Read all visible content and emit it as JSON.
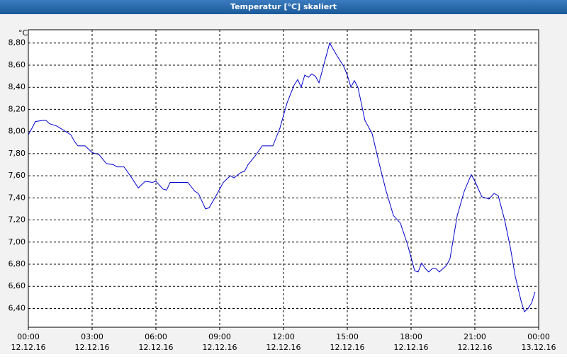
{
  "chart_data": {
    "type": "line",
    "title": "Temperatur [°C] skaliert",
    "y_unit": "°C",
    "x": [
      0,
      0.17,
      0.33,
      0.67,
      0.83,
      1.0,
      1.33,
      1.67,
      2.0,
      2.17,
      2.33,
      2.67,
      3.0,
      3.33,
      3.67,
      4.0,
      4.17,
      4.5,
      4.83,
      5.17,
      5.5,
      5.83,
      6.0,
      6.33,
      6.5,
      6.67,
      7.33,
      7.5,
      7.83,
      8.0,
      8.33,
      8.5,
      8.83,
      9.17,
      9.5,
      9.67,
      10.0,
      10.17,
      10.33,
      10.67,
      11.0,
      11.5,
      11.83,
      12.17,
      12.5,
      12.67,
      12.83,
      13.0,
      13.17,
      13.33,
      13.5,
      13.67,
      14.17,
      14.5,
      14.83,
      15.0,
      15.17,
      15.33,
      15.5,
      15.83,
      16.17,
      16.5,
      16.83,
      17.17,
      17.5,
      17.83,
      18.17,
      18.33,
      18.5,
      18.67,
      18.83,
      19.0,
      19.17,
      19.33,
      19.67,
      19.83,
      20.17,
      20.5,
      20.83,
      21.0,
      21.33,
      21.67,
      21.9,
      22.1,
      22.4,
      22.67,
      22.9,
      23.17,
      23.33,
      23.5,
      23.67,
      23.83
    ],
    "series": [
      {
        "color": "#0000cc",
        "values": [
          7.97,
          8.03,
          8.09,
          8.1,
          8.1,
          8.07,
          8.05,
          8.01,
          7.97,
          7.91,
          7.87,
          7.87,
          7.81,
          7.79,
          7.71,
          7.7,
          7.68,
          7.68,
          7.59,
          7.49,
          7.55,
          7.54,
          7.55,
          7.48,
          7.47,
          7.54,
          7.54,
          7.54,
          7.46,
          7.44,
          7.3,
          7.31,
          7.42,
          7.54,
          7.6,
          7.58,
          7.63,
          7.64,
          7.7,
          7.78,
          7.87,
          7.87,
          8.03,
          8.26,
          8.42,
          8.47,
          8.4,
          8.51,
          8.49,
          8.52,
          8.5,
          8.44,
          8.8,
          8.69,
          8.59,
          8.51,
          8.4,
          8.46,
          8.4,
          8.1,
          7.98,
          7.71,
          7.46,
          7.24,
          7.17,
          6.98,
          6.74,
          6.73,
          6.81,
          6.76,
          6.73,
          6.76,
          6.76,
          6.73,
          6.79,
          6.85,
          7.24,
          7.46,
          7.61,
          7.55,
          7.41,
          7.39,
          7.44,
          7.42,
          7.2,
          6.95,
          6.69,
          6.47,
          6.37,
          6.4,
          6.45,
          6.55
        ]
      }
    ],
    "xlim": [
      0,
      24
    ],
    "xticks": [
      {
        "value": 0,
        "label": "00:00"
      },
      {
        "value": 3,
        "label": "03:00"
      },
      {
        "value": 6,
        "label": "06:00"
      },
      {
        "value": 9,
        "label": "09:00"
      },
      {
        "value": 12,
        "label": "12:00"
      },
      {
        "value": 15,
        "label": "15:00"
      },
      {
        "value": 18,
        "label": "18:00"
      },
      {
        "value": 21,
        "label": "21:00"
      },
      {
        "value": 24,
        "label": "00:00"
      }
    ],
    "xtick_dates": [
      "12.12.16",
      "12.12.16",
      "12.12.16",
      "12.12.16",
      "12.12.16",
      "12.12.16",
      "12.12.16",
      "12.12.16",
      "13.12.16"
    ],
    "ylim": [
      6.23,
      8.92
    ],
    "yticks": [
      {
        "value": 6.4,
        "label": "6,40"
      },
      {
        "value": 6.6,
        "label": "6,60"
      },
      {
        "value": 6.8,
        "label": "6,80"
      },
      {
        "value": 7.0,
        "label": "7,00"
      },
      {
        "value": 7.2,
        "label": "7,20"
      },
      {
        "value": 7.4,
        "label": "7,40"
      },
      {
        "value": 7.6,
        "label": "7,60"
      },
      {
        "value": 7.8,
        "label": "7,80"
      },
      {
        "value": 8.0,
        "label": "8,00"
      },
      {
        "value": 8.2,
        "label": "8,20"
      },
      {
        "value": 8.4,
        "label": "8,40"
      },
      {
        "value": 8.6,
        "label": "8,60"
      },
      {
        "value": 8.8,
        "label": "8,80"
      }
    ],
    "grid": true
  }
}
